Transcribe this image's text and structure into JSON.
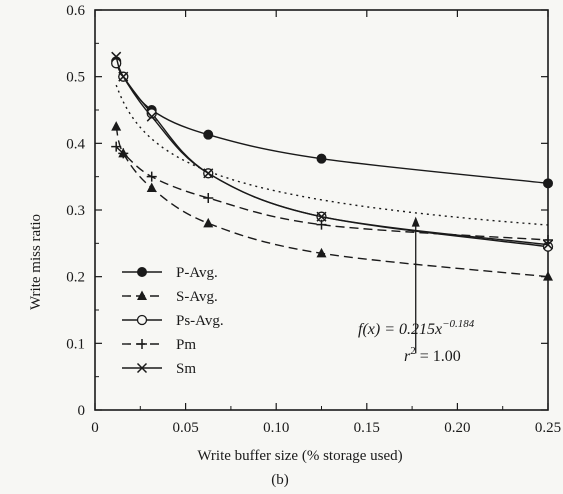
{
  "chart_data": {
    "type": "line",
    "xlabel": "Write buffer size  (% storage used)",
    "ylabel": "Write miss ratio",
    "subcaption": "(b)",
    "xlim": [
      0,
      0.25
    ],
    "ylim": [
      0,
      0.6
    ],
    "xticks": [
      0,
      0.05,
      0.1,
      0.15,
      0.2,
      0.25
    ],
    "xtick_labels": [
      "0",
      "0.05",
      "0.10",
      "0.15",
      "0.20",
      "0.25"
    ],
    "yticks": [
      0,
      0.1,
      0.2,
      0.3,
      0.4,
      0.5,
      0.6
    ],
    "ytick_labels": [
      "0",
      "0.1",
      "0.2",
      "0.3",
      "0.4",
      "0.5",
      "0.6"
    ],
    "grid": false,
    "legend_position": "bottom-left",
    "series": [
      {
        "name": "P-Avg.",
        "marker": "filled-circle",
        "dash": "solid",
        "x": [
          0.0117,
          0.0156,
          0.0313,
          0.0625,
          0.125,
          0.25
        ],
        "y": [
          0.523,
          0.5,
          0.45,
          0.413,
          0.377,
          0.34
        ]
      },
      {
        "name": "S-Avg.",
        "marker": "filled-triangle",
        "dash": "dashed",
        "x": [
          0.0117,
          0.0156,
          0.0313,
          0.0625,
          0.125,
          0.25
        ],
        "y": [
          0.425,
          0.385,
          0.333,
          0.28,
          0.235,
          0.2
        ]
      },
      {
        "name": "Ps-Avg.",
        "marker": "open-circle",
        "dash": "solid",
        "x": [
          0.0117,
          0.0156,
          0.0313,
          0.0625,
          0.125,
          0.25
        ],
        "y": [
          0.52,
          0.5,
          0.445,
          0.355,
          0.29,
          0.245
        ]
      },
      {
        "name": "Pm",
        "marker": "plus",
        "dash": "dashed",
        "x": [
          0.0117,
          0.0156,
          0.0313,
          0.0625,
          0.125,
          0.25
        ],
        "y": [
          0.395,
          0.385,
          0.35,
          0.318,
          0.278,
          0.255
        ]
      },
      {
        "name": "Sm",
        "marker": "cross",
        "dash": "solid",
        "x": [
          0.0117,
          0.0156,
          0.0313,
          0.0625,
          0.125,
          0.25
        ],
        "y": [
          0.53,
          0.5,
          0.44,
          0.355,
          0.29,
          0.248
        ]
      }
    ],
    "fit_curve": {
      "dash": "dotted",
      "a": 0.215,
      "b": -0.184
    },
    "annotation": {
      "text_fx": "f(x) = 0.215x",
      "text_fx_exp": "−0.184",
      "text_r2": "r",
      "text_r2_exp": "2",
      "text_r2_val": " = 1.00",
      "arrow_x": 0.177,
      "arrow_from_y": 0.085,
      "arrow_to_y": 0.29
    }
  }
}
